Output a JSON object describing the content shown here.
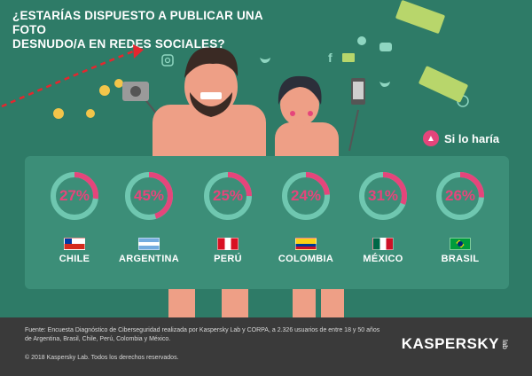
{
  "title_lines": [
    "¿ESTARÍAS DISPUESTO A PUBLICAR UNA FOTO",
    "DESNUDO/A EN REDES SOCIALES?"
  ],
  "legend": {
    "label": "Si lo haría",
    "icon": "thumbs-up-icon",
    "color": "#e5457b"
  },
  "colors": {
    "background": "#2e7b67",
    "accent": "#e5457b",
    "ring_track": "#6fc7b0",
    "footer": "#3a3a3a"
  },
  "countries": [
    {
      "name": "CHILE",
      "percent_label": "27%",
      "value": 27,
      "flag": "chile-flag-icon"
    },
    {
      "name": "ARGENTINA",
      "percent_label": "45%",
      "value": 45,
      "flag": "argentina-flag-icon"
    },
    {
      "name": "PERÚ",
      "percent_label": "25%",
      "value": 25,
      "flag": "peru-flag-icon"
    },
    {
      "name": "COLOMBIA",
      "percent_label": "24%",
      "value": 24,
      "flag": "colombia-flag-icon"
    },
    {
      "name": "MÉXICO",
      "percent_label": "31%",
      "value": 31,
      "flag": "mexico-flag-icon"
    },
    {
      "name": "BRASIL",
      "percent_label": "26%",
      "value": 26,
      "flag": "brazil-flag-icon"
    }
  ],
  "footer": {
    "source_line1": "Fuente: Encuesta Diagnóstico de Ciberseguridad realizada por Kaspersky Lab y CORPA, a 2.326 usuarios de entre 18 y 50 años",
    "source_line2": "de Argentina, Brasil, Chile, Perú, Colombia y México.",
    "copyright": "© 2018 Kaspersky Lab. Todos los derechos reservados.",
    "logo_word": "KASPERSKY",
    "logo_suffix": "lab"
  }
}
